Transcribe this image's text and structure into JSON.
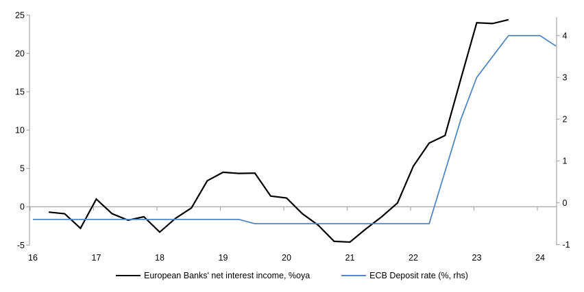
{
  "chart_data": {
    "type": "line",
    "title": "",
    "xlabel": "",
    "ylabel_left": "",
    "ylabel_right": "",
    "grid": "zero-line-only",
    "legend_position": "bottom-center",
    "x_axis": {
      "tick_values": [
        16,
        17,
        18,
        19,
        20,
        21,
        22,
        23,
        24
      ],
      "tick_labels": [
        "16",
        "17",
        "18",
        "19",
        "20",
        "21",
        "22",
        "23",
        "24"
      ]
    },
    "left_axis": {
      "ticks": [
        -5,
        0,
        5,
        10,
        15,
        20,
        25
      ],
      "range": [
        -5,
        25
      ]
    },
    "right_axis": {
      "ticks": [
        -1,
        0,
        1,
        2,
        3,
        4
      ],
      "range": [
        -1,
        4.5
      ]
    },
    "series": [
      {
        "name": "European Banks' net interest income, %oya",
        "axis": "left",
        "color": "#000000",
        "x": [
          16.25,
          16.5,
          16.75,
          17.0,
          17.25,
          17.5,
          17.75,
          18.0,
          18.25,
          18.5,
          18.75,
          19.0,
          19.25,
          19.5,
          19.75,
          20.0,
          20.25,
          20.5,
          20.75,
          21.0,
          21.25,
          21.5,
          21.75,
          22.0,
          22.25,
          22.5,
          22.75,
          23.0,
          23.25,
          23.5
        ],
        "values": [
          -0.7,
          -0.9,
          -2.8,
          1.0,
          -0.9,
          -1.75,
          -1.3,
          -3.3,
          -1.5,
          -0.15,
          3.4,
          4.5,
          4.35,
          4.4,
          1.4,
          1.15,
          -0.9,
          -2.4,
          -4.5,
          -4.6,
          -2.9,
          -1.3,
          0.5,
          5.3,
          8.3,
          9.3,
          16.7,
          24.0,
          23.9,
          24.4
        ]
      },
      {
        "name": "ECB Deposit rate (%, rhs)",
        "axis": "right",
        "color": "#4f87c2",
        "x": [
          16.0,
          16.25,
          16.5,
          16.75,
          17.0,
          17.25,
          17.5,
          17.75,
          18.0,
          18.25,
          18.5,
          18.75,
          19.0,
          19.25,
          19.5,
          19.75,
          20.0,
          20.25,
          20.5,
          20.75,
          21.0,
          21.25,
          21.5,
          21.75,
          22.0,
          22.25,
          22.5,
          22.75,
          23.0,
          23.25,
          23.5,
          23.75,
          24.0,
          24.25
        ],
        "values": [
          -0.4,
          -0.4,
          -0.4,
          -0.4,
          -0.4,
          -0.4,
          -0.4,
          -0.4,
          -0.4,
          -0.4,
          -0.4,
          -0.4,
          -0.4,
          -0.4,
          -0.5,
          -0.5,
          -0.5,
          -0.5,
          -0.5,
          -0.5,
          -0.5,
          -0.5,
          -0.5,
          -0.5,
          -0.5,
          -0.5,
          0.75,
          2.0,
          3.0,
          3.5,
          4.0,
          4.0,
          4.0,
          3.75
        ]
      }
    ]
  },
  "colors": {
    "background": "#ffffff",
    "axis_line": "#a6a6a6",
    "zero_line": "#a6a6a6",
    "text": "#000000",
    "nii_line": "#000000",
    "ecb_line": "#4f87c2"
  }
}
